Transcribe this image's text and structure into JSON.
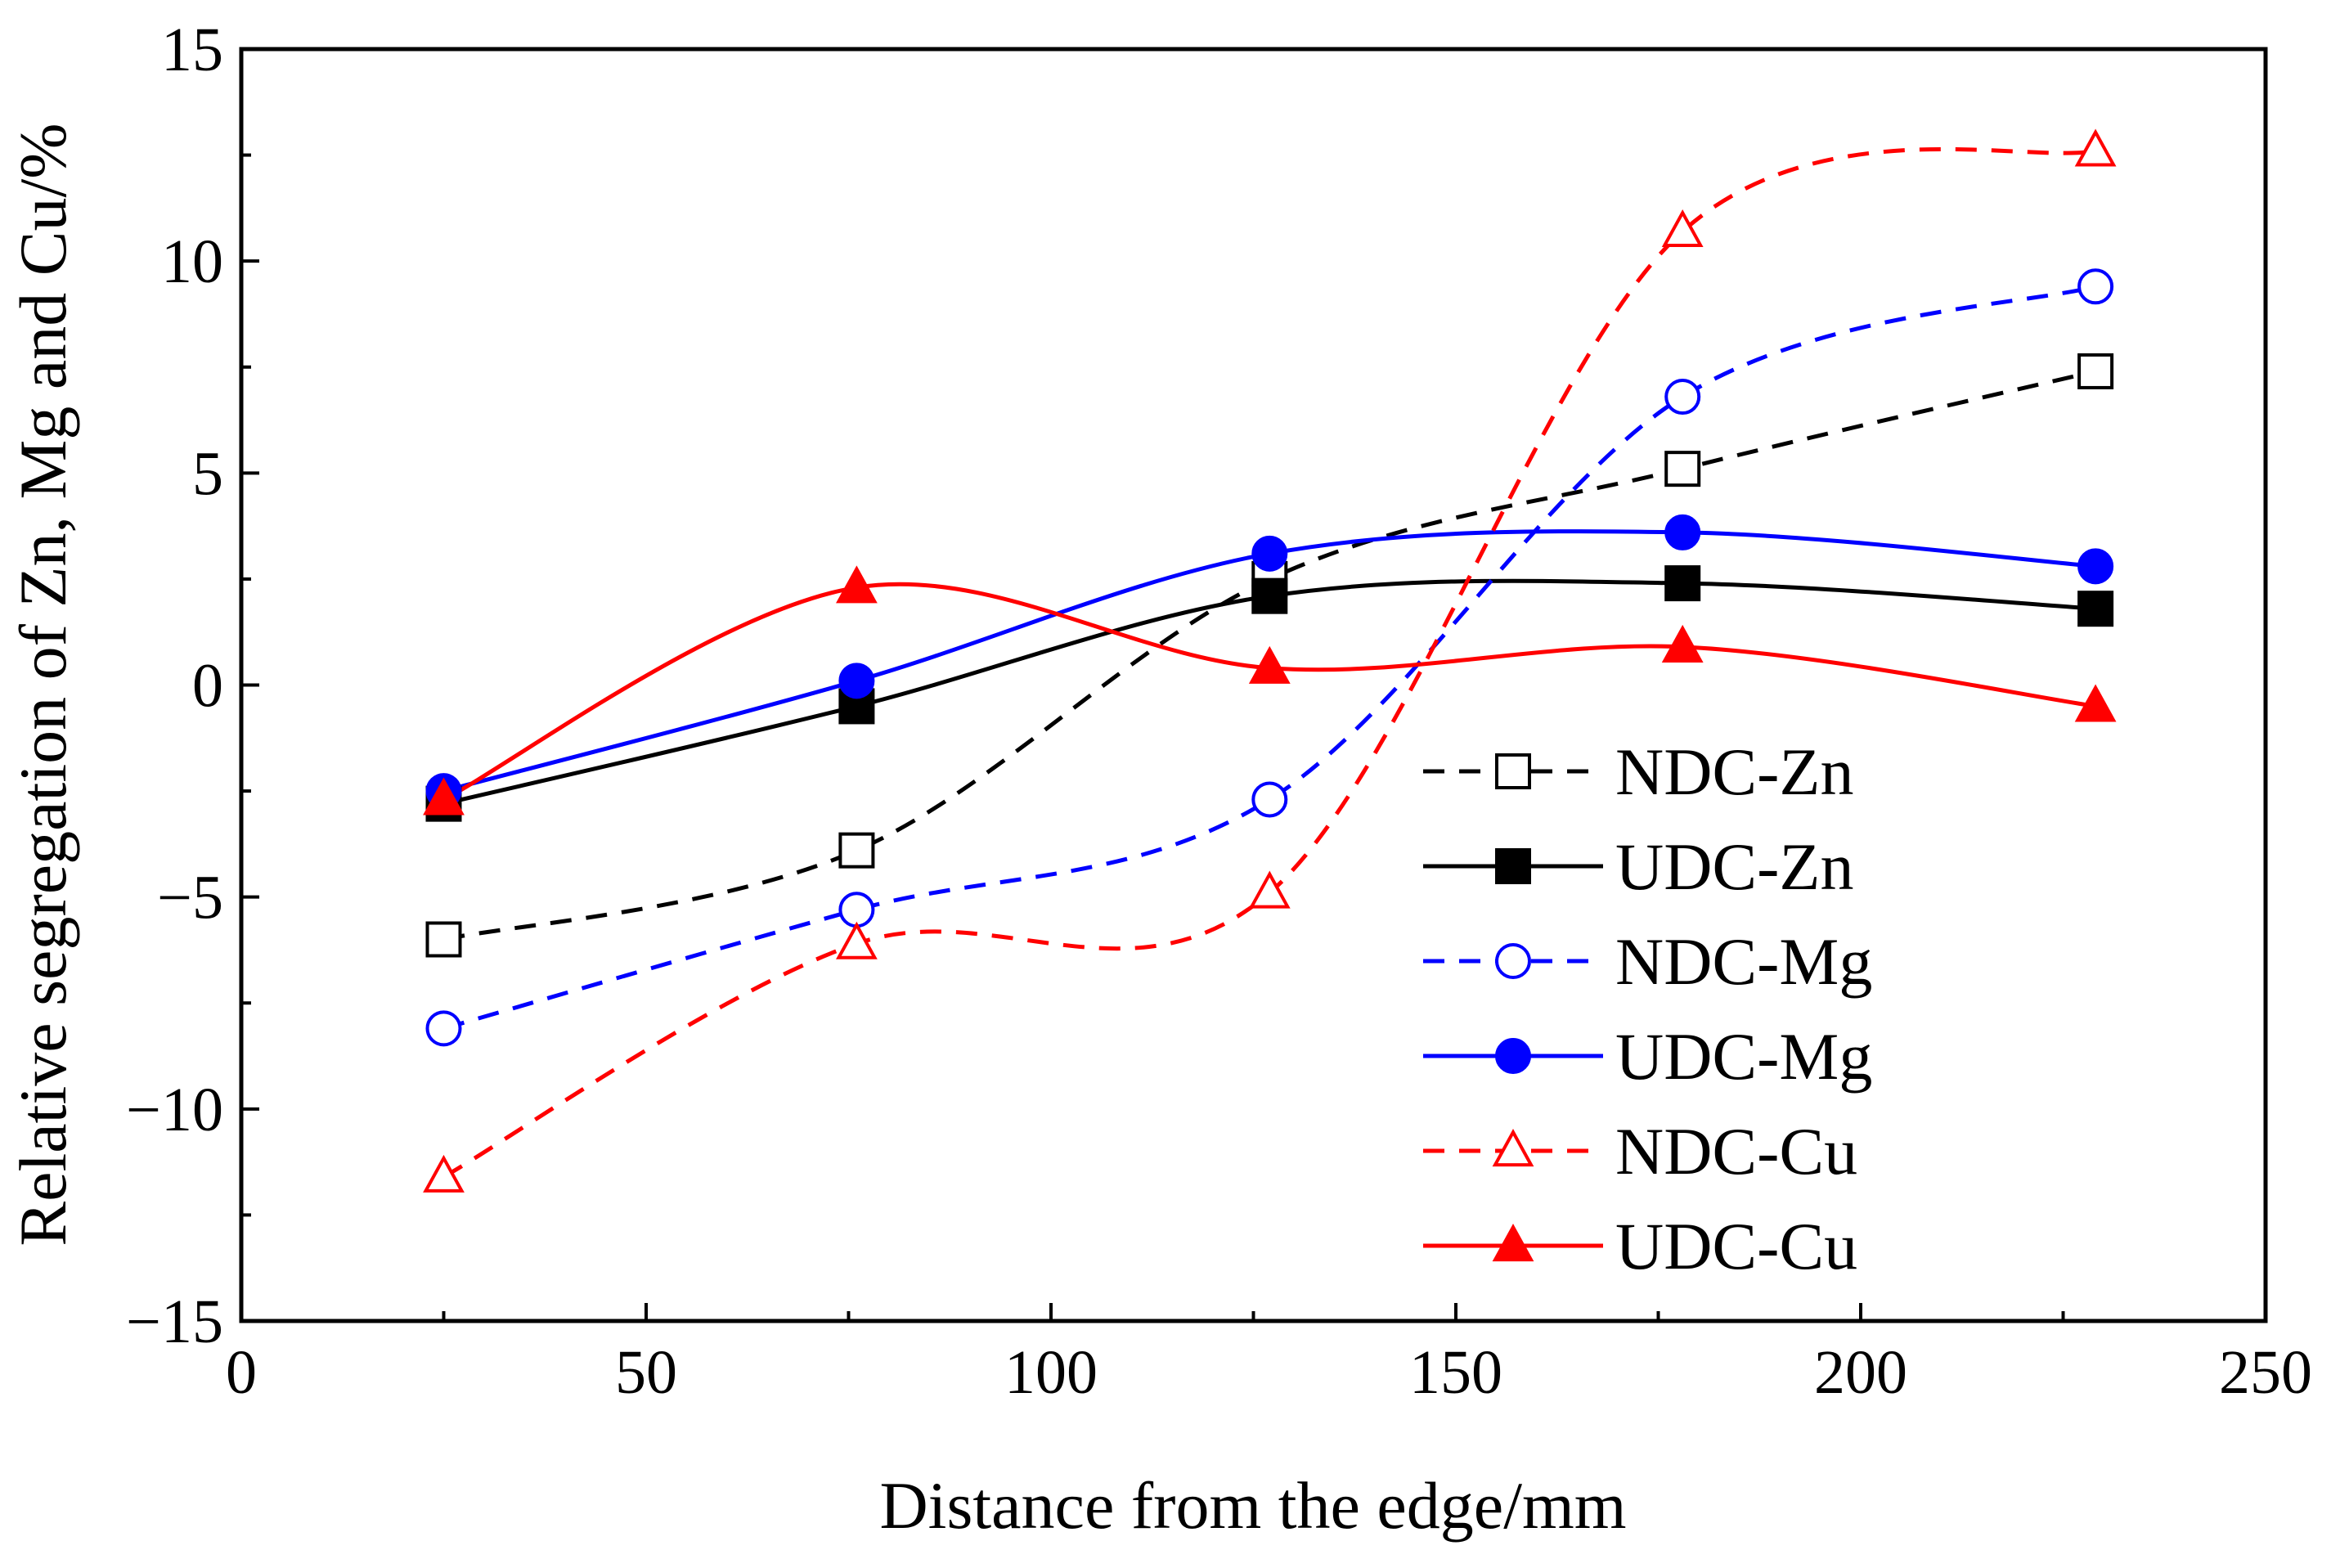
{
  "chart_data": {
    "type": "line",
    "title": "",
    "xlabel": "Distance from the edge/mm",
    "ylabel": "Relative segregation of Zn, Mg and Cu/%",
    "xlim": [
      0,
      250
    ],
    "ylim": [
      -15,
      15
    ],
    "xticks": [
      0,
      50,
      100,
      150,
      200,
      250
    ],
    "xtick_labels": [
      "0",
      "50",
      "100",
      "150",
      "200",
      "250"
    ],
    "yticks": [
      -15,
      -10,
      -5,
      0,
      5,
      10,
      15
    ],
    "ytick_labels": [
      "−15",
      "−10",
      "−5",
      "0",
      "5",
      "10",
      "15"
    ],
    "grid": false,
    "legend_position": "center-right",
    "x": [
      25,
      76,
      127,
      178,
      229
    ],
    "series": [
      {
        "name": "NDC-Zn",
        "values": [
          -6.0,
          -3.9,
          2.5,
          5.1,
          7.4
        ],
        "color": "#000000",
        "dashed": true,
        "marker": "square",
        "filled": false
      },
      {
        "name": "UDC-Zn",
        "values": [
          -2.8,
          -0.5,
          2.1,
          2.4,
          1.8
        ],
        "color": "#000000",
        "dashed": false,
        "marker": "square",
        "filled": true
      },
      {
        "name": "NDC-Mg",
        "values": [
          -8.1,
          -5.3,
          -2.7,
          6.8,
          9.4
        ],
        "color": "#0000ff",
        "dashed": true,
        "marker": "circle",
        "filled": false
      },
      {
        "name": "UDC-Mg",
        "values": [
          -2.5,
          0.1,
          3.1,
          3.6,
          2.8
        ],
        "color": "#0000ff",
        "dashed": false,
        "marker": "circle",
        "filled": true
      },
      {
        "name": "NDC-Cu",
        "values": [
          -11.6,
          -6.1,
          -4.9,
          10.7,
          12.6
        ],
        "color": "#ff0000",
        "dashed": true,
        "marker": "triangle",
        "filled": false
      },
      {
        "name": "UDC-Cu",
        "values": [
          -2.7,
          2.3,
          0.4,
          0.9,
          -0.5
        ],
        "color": "#ff0000",
        "dashed": false,
        "marker": "triangle",
        "filled": true
      }
    ]
  }
}
